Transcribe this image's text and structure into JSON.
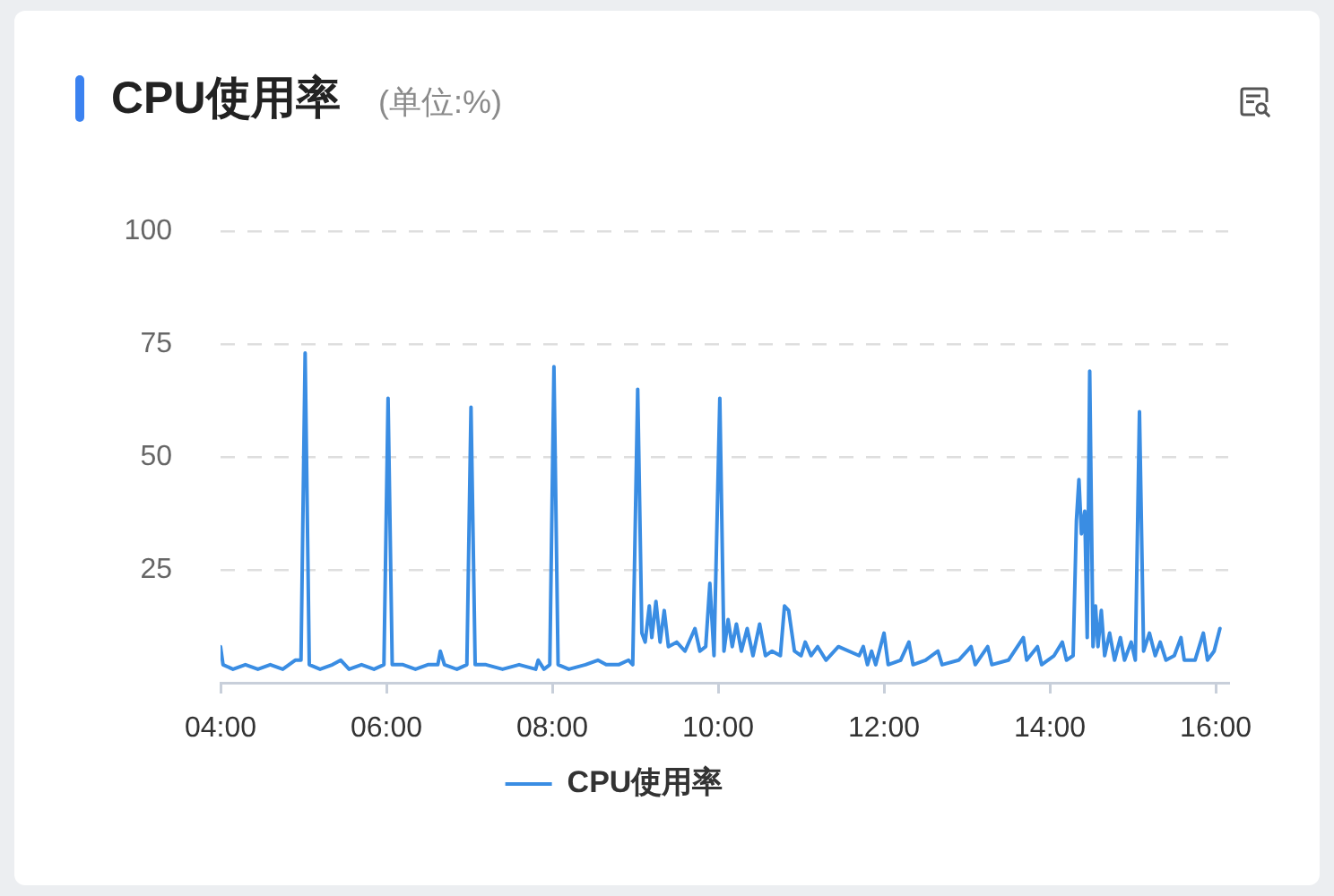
{
  "chart_data": {
    "type": "line",
    "title": "CPU使用率",
    "subtitle": "(单位:%)",
    "xlim": [
      4,
      16.15
    ],
    "xticks": [
      {
        "value": 4,
        "label": "04:00"
      },
      {
        "value": 6,
        "label": "06:00"
      },
      {
        "value": 8,
        "label": "08:00"
      },
      {
        "value": 10,
        "label": "10:00"
      },
      {
        "value": 12,
        "label": "12:00"
      },
      {
        "value": 14,
        "label": "14:00"
      },
      {
        "value": 16,
        "label": "16:00"
      }
    ],
    "ylim": [
      0,
      100
    ],
    "yticks": [
      {
        "value": 0,
        "label": null
      },
      25,
      50,
      75,
      100
    ],
    "grid": "y",
    "legend": "bottom",
    "x": [
      4.0,
      4.03,
      4.15,
      4.3,
      4.45,
      4.6,
      4.75,
      4.9,
      4.97,
      5.02,
      5.07,
      5.2,
      5.35,
      5.45,
      5.55,
      5.7,
      5.85,
      5.97,
      6.02,
      6.07,
      6.2,
      6.35,
      6.5,
      6.62,
      6.65,
      6.7,
      6.85,
      6.97,
      7.02,
      7.07,
      7.2,
      7.4,
      7.6,
      7.8,
      7.83,
      7.9,
      7.97,
      8.02,
      8.07,
      8.2,
      8.4,
      8.55,
      8.65,
      8.8,
      8.92,
      8.97,
      9.03,
      9.08,
      9.12,
      9.17,
      9.2,
      9.25,
      9.3,
      9.35,
      9.4,
      9.5,
      9.6,
      9.72,
      9.78,
      9.85,
      9.9,
      9.95,
      10.02,
      10.07,
      10.12,
      10.17,
      10.22,
      10.28,
      10.35,
      10.42,
      10.5,
      10.57,
      10.65,
      10.75,
      10.8,
      10.85,
      10.92,
      11.0,
      11.05,
      11.12,
      11.2,
      11.3,
      11.45,
      11.7,
      11.75,
      11.8,
      11.85,
      11.9,
      12.0,
      12.05,
      12.2,
      12.3,
      12.35,
      12.5,
      12.65,
      12.7,
      12.9,
      13.05,
      13.1,
      13.25,
      13.3,
      13.5,
      13.68,
      13.72,
      13.85,
      13.9,
      14.05,
      14.15,
      14.2,
      14.28,
      14.32,
      14.35,
      14.38,
      14.42,
      14.45,
      14.48,
      14.52,
      14.55,
      14.58,
      14.62,
      14.66,
      14.72,
      14.78,
      14.85,
      14.9,
      14.98,
      15.03,
      15.08,
      15.13,
      15.2,
      15.27,
      15.33,
      15.4,
      15.5,
      15.58,
      15.62,
      15.75,
      15.85,
      15.9,
      15.98,
      16.05
    ],
    "series": [
      {
        "name": "CPU使用率",
        "color": "#3a8de3",
        "values": [
          8,
          4,
          3,
          4,
          3,
          4,
          3,
          5,
          5,
          73,
          4,
          3,
          4,
          5,
          3,
          4,
          3,
          4,
          63,
          4,
          4,
          3,
          4,
          4,
          7,
          4,
          3,
          4,
          61,
          4,
          4,
          3,
          4,
          3,
          5,
          3,
          4,
          70,
          4,
          3,
          4,
          5,
          4,
          4,
          5,
          4,
          65,
          11,
          9,
          17,
          10,
          18,
          9,
          16,
          8,
          9,
          7,
          12,
          7,
          8,
          22,
          6,
          63,
          7,
          14,
          8,
          13,
          7,
          12,
          6,
          13,
          6,
          7,
          6,
          17,
          16,
          7,
          6,
          9,
          6,
          8,
          5,
          8,
          6,
          8,
          4,
          7,
          4,
          11,
          4,
          5,
          9,
          4,
          5,
          7,
          4,
          5,
          8,
          4,
          8,
          4,
          5,
          10,
          5,
          8,
          4,
          6,
          9,
          5,
          6,
          36,
          45,
          33,
          38,
          10,
          69,
          8,
          17,
          8,
          16,
          6,
          11,
          5,
          10,
          5,
          9,
          5,
          60,
          7,
          11,
          6,
          9,
          5,
          6,
          10,
          5,
          5,
          11,
          5,
          7,
          12
        ]
      }
    ]
  }
}
